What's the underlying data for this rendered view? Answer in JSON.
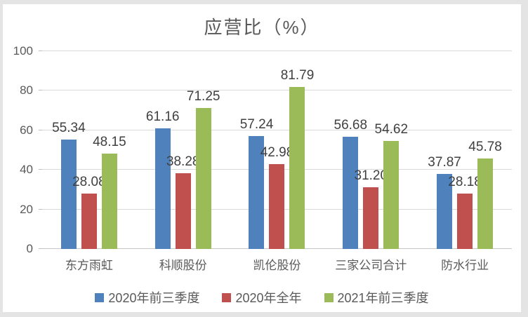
{
  "chart_data": {
    "type": "bar",
    "title": "应营比（%）",
    "categories": [
      "东方雨虹",
      "科顺股份",
      "凯伦股份",
      "三家公司合计",
      "防水行业"
    ],
    "series": [
      {
        "name": "2020年前三季度",
        "color": "#4f81bd",
        "values": [
          55.34,
          61.16,
          57.24,
          56.68,
          37.87
        ]
      },
      {
        "name": "2020年全年",
        "color": "#c0504d",
        "values": [
          28.08,
          38.28,
          42.98,
          31.2,
          28.18
        ]
      },
      {
        "name": "2021年前三季度",
        "color": "#9bbb59",
        "values": [
          48.15,
          71.25,
          81.79,
          54.62,
          45.78
        ]
      }
    ],
    "value_decimals": 2,
    "ylim": [
      0,
      100
    ],
    "yticks": [
      0,
      20,
      40,
      60,
      80,
      100
    ],
    "grid": true,
    "legend_position": "bottom",
    "data_labels": true
  },
  "colors": {
    "background": "#e4e4e4",
    "panel": "#ffffff",
    "grid_line": "#d9d9d9",
    "axis_text": "#595959",
    "data_label_text": "#404040",
    "title_text": "#595959"
  }
}
